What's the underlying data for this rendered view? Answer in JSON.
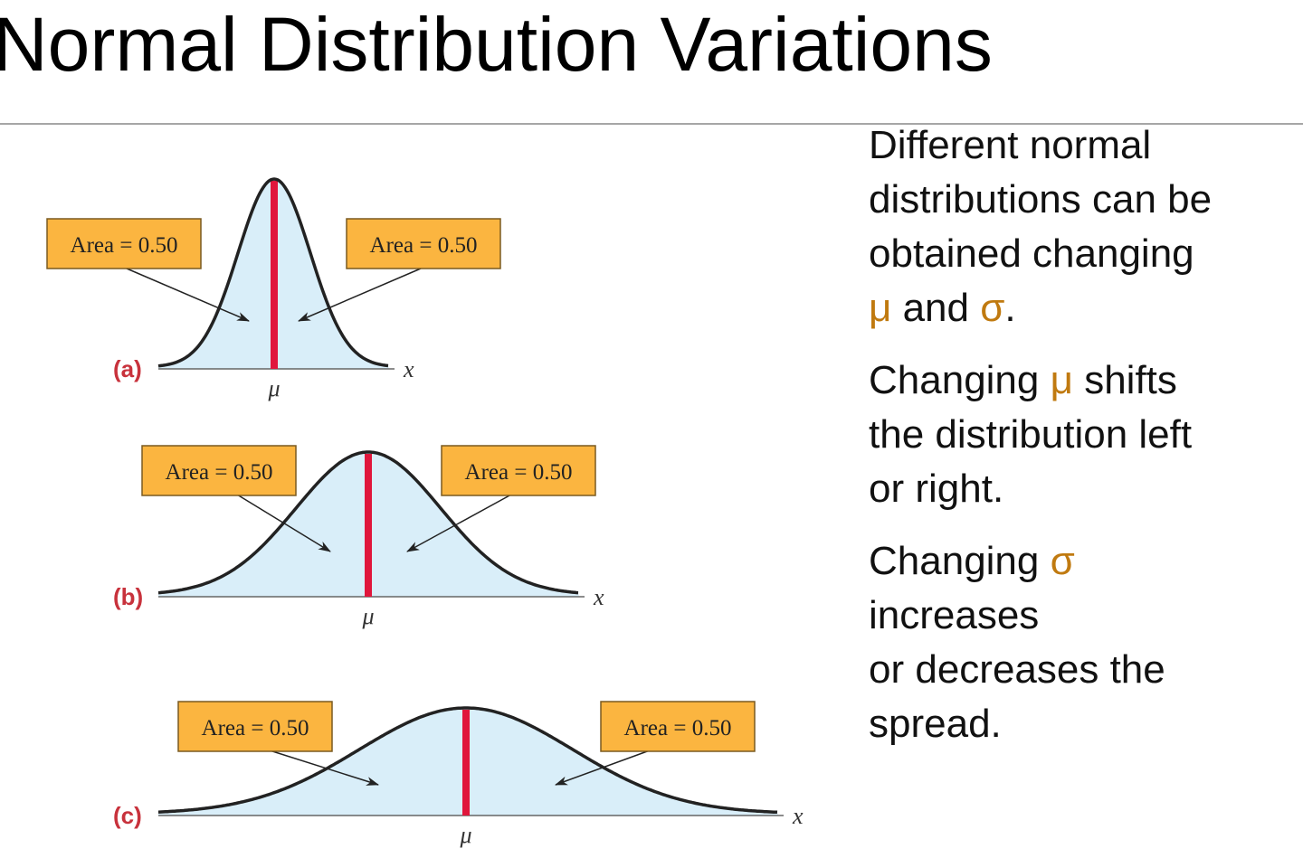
{
  "title": "Normal Distribution Variations",
  "figure": {
    "panels": [
      {
        "label": "(a)",
        "mean_label": "μ",
        "axis_label": "x",
        "areas": [
          "Area = 0.50",
          "Area = 0.50"
        ]
      },
      {
        "label": "(b)",
        "mean_label": "μ",
        "axis_label": "x",
        "areas": [
          "Area = 0.50",
          "Area = 0.50"
        ]
      },
      {
        "label": "(c)",
        "mean_label": "μ",
        "axis_label": "x",
        "areas": [
          "Area = 0.50",
          "Area = 0.50"
        ]
      }
    ]
  },
  "paragraphs": [
    [
      [
        {
          "text": "Different normal"
        }
      ],
      [
        {
          "text": "distributions can be"
        }
      ],
      [
        {
          "text": "obtained changing"
        }
      ],
      [
        {
          "text": "μ",
          "color": "#c07a10"
        },
        {
          "text": " and "
        },
        {
          "text": "σ",
          "color": "#c07a10"
        },
        {
          "text": "."
        }
      ]
    ],
    [
      [
        {
          "text": "Changing "
        },
        {
          "text": "μ",
          "color": "#c07a10"
        },
        {
          "text": " shifts"
        }
      ],
      [
        {
          "text": "the distribution left"
        }
      ],
      [
        {
          "text": "or right."
        }
      ]
    ],
    [
      [
        {
          "text": "Changing "
        },
        {
          "text": "σ",
          "color": "#c07a10"
        }
      ],
      [
        {
          "text": "increases"
        }
      ],
      [
        {
          "text": "or decreases the"
        }
      ],
      [
        {
          "text": "spread."
        }
      ]
    ]
  ]
}
